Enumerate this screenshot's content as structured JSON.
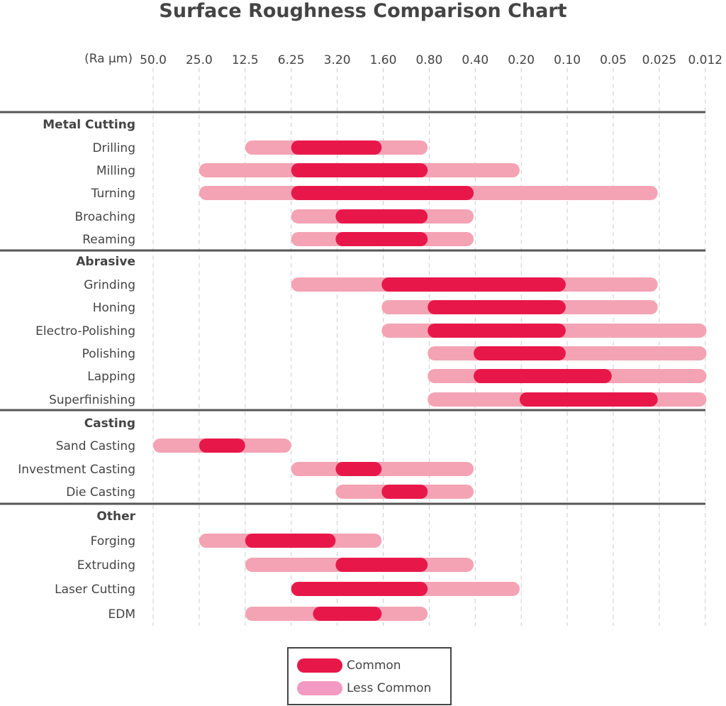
{
  "chart_data": {
    "type": "bar",
    "subtype": "range",
    "title": "Surface Roughness Comparison Chart",
    "axis_unit_label": "(Ra μm)",
    "x_scale": "log (reversed)",
    "x_ticks": [
      "50.0",
      "25.0",
      "12.5",
      "6.25",
      "3.20",
      "1.60",
      "0.80",
      "0.40",
      "0.20",
      "0.10",
      "0.05",
      "0.025",
      "0.012"
    ],
    "grid": true,
    "legend": {
      "placement": "bottom-center",
      "entries": [
        {
          "label": "Common",
          "color": "#e8174a"
        },
        {
          "label": "Less Common",
          "color": "#f29ac2"
        }
      ]
    },
    "colors": {
      "common": "#e8174a",
      "less_common": "#f4a3b4"
    },
    "groups": [
      {
        "name": "Metal Cutting",
        "processes": [
          {
            "name": "Drilling",
            "less_common": [
              12.5,
              0.8
            ],
            "common": [
              6.25,
              1.6
            ]
          },
          {
            "name": "Milling",
            "less_common": [
              25.0,
              0.2
            ],
            "common": [
              6.25,
              0.8
            ]
          },
          {
            "name": "Turning",
            "less_common": [
              25.0,
              0.025
            ],
            "common": [
              6.25,
              0.4
            ]
          },
          {
            "name": "Broaching",
            "less_common": [
              6.25,
              0.4
            ],
            "common": [
              3.2,
              0.8
            ]
          },
          {
            "name": "Reaming",
            "less_common": [
              6.25,
              0.4
            ],
            "common": [
              3.2,
              0.8
            ]
          }
        ]
      },
      {
        "name": "Abrasive",
        "processes": [
          {
            "name": "Grinding",
            "less_common": [
              6.25,
              0.025
            ],
            "common": [
              1.6,
              0.1
            ]
          },
          {
            "name": "Honing",
            "less_common": [
              1.6,
              0.025
            ],
            "common": [
              0.8,
              0.1
            ]
          },
          {
            "name": "Electro-Polishing",
            "less_common": [
              1.6,
              0.012
            ],
            "common": [
              0.8,
              0.1
            ]
          },
          {
            "name": "Polishing",
            "less_common": [
              0.8,
              0.012
            ],
            "common": [
              0.4,
              0.1
            ]
          },
          {
            "name": "Lapping",
            "less_common": [
              0.8,
              0.012
            ],
            "common": [
              0.4,
              0.05
            ]
          },
          {
            "name": "Superfinishing",
            "less_common": [
              0.8,
              0.012
            ],
            "common": [
              0.2,
              0.025
            ]
          }
        ]
      },
      {
        "name": "Casting",
        "processes": [
          {
            "name": "Sand Casting",
            "less_common": [
              50.0,
              6.25
            ],
            "common": [
              25.0,
              12.5
            ]
          },
          {
            "name": "Investment Casting",
            "less_common": [
              6.25,
              0.4
            ],
            "common": [
              3.2,
              1.6
            ]
          },
          {
            "name": "Die Casting",
            "less_common": [
              3.2,
              0.4
            ],
            "common": [
              1.6,
              0.8
            ]
          }
        ]
      },
      {
        "name": "Other",
        "processes": [
          {
            "name": "Forging",
            "less_common": [
              25.0,
              1.6
            ],
            "common": [
              12.5,
              3.2
            ]
          },
          {
            "name": "Extruding",
            "less_common": [
              12.5,
              0.4
            ],
            "common": [
              3.2,
              0.8
            ]
          },
          {
            "name": "Laser Cutting",
            "less_common": [
              6.25,
              0.2
            ],
            "common": [
              6.25,
              0.8
            ]
          },
          {
            "name": "EDM",
            "less_common": [
              12.5,
              0.8
            ],
            "common": [
              4.5,
              1.6
            ]
          }
        ]
      }
    ]
  }
}
